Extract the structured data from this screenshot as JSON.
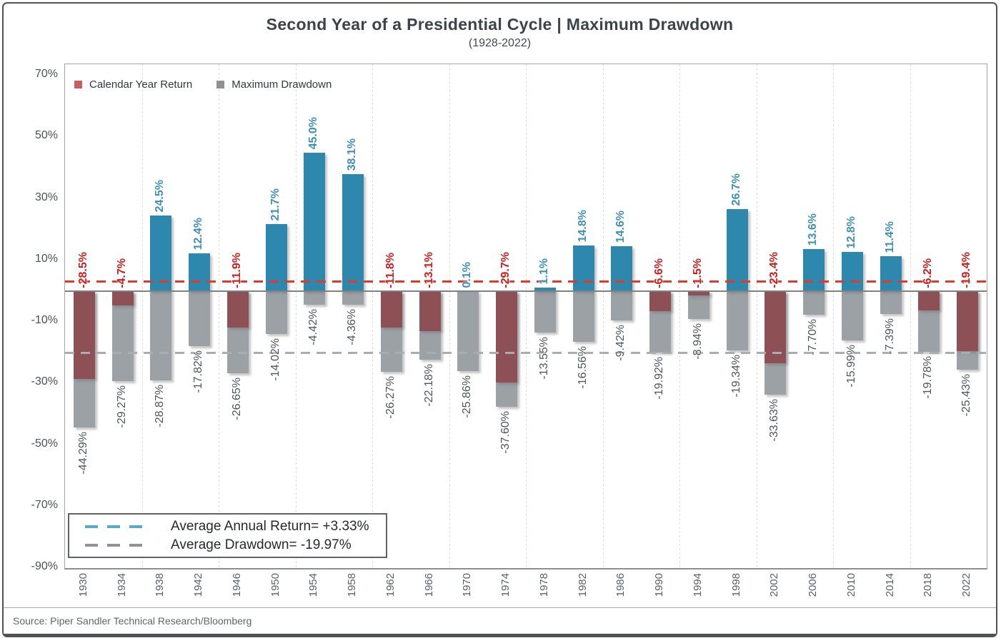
{
  "title": "Second Year of a Presidential Cycle | Maximum Drawdown",
  "subtitle": "(1928-2022)",
  "source": "Source: Piper Sandler Technical Research/Bloomberg",
  "legend": {
    "return_label": "Calendar Year Return",
    "drawdown_label": "Maximum Drawdown"
  },
  "avg_box": {
    "return_line": "Average Annual Return= +3.33%",
    "drawdown_line": "Average Drawdown= -19.97%"
  },
  "colors": {
    "return_positive_bar": "#2e87ac",
    "return_negative_bar": "#8c5055",
    "drawdown_bar": "#9ba1a5",
    "return_positive_label": "#3f90b5",
    "return_negative_label": "#c9201d",
    "drawdown_label": "#515659",
    "avg_return_line_chart": "#e03a2b",
    "avg_drawdown_line_chart": "#a8adb1",
    "avg_return_line_legend": "#57a8ce",
    "avg_drawdown_line_legend": "#8e9397"
  },
  "chart_data": {
    "type": "bar",
    "title": "Second Year of a Presidential Cycle | Maximum Drawdown",
    "subtitle": "(1928-2022)",
    "categories": [
      "1930",
      "1934",
      "1938",
      "1942",
      "1946",
      "1950",
      "1954",
      "1958",
      "1962",
      "1966",
      "1970",
      "1974",
      "1978",
      "1982",
      "1986",
      "1990",
      "1994",
      "1998",
      "2002",
      "2006",
      "2010",
      "2014",
      "2018",
      "2022"
    ],
    "series": [
      {
        "name": "Calendar Year Return",
        "values": [
          -28.5,
          -4.7,
          24.5,
          12.4,
          -11.9,
          21.7,
          45.0,
          38.1,
          -11.8,
          -13.1,
          0.1,
          -29.7,
          1.1,
          14.8,
          14.6,
          -6.6,
          -1.5,
          26.7,
          -23.4,
          13.6,
          12.8,
          11.4,
          -6.2,
          -19.4
        ],
        "labels": [
          "-28.5%",
          "-4.7%",
          "24.5%",
          "12.4%",
          "-11.9%",
          "21.7%",
          "45.0%",
          "38.1%",
          "-11.8%",
          "-13.1%",
          "0.1%",
          "-29.7%",
          "1.1%",
          "14.8%",
          "14.6%",
          "-6.6%",
          "-1.5%",
          "26.7%",
          "-23.4%",
          "13.6%",
          "12.8%",
          "11.4%",
          "-6.2%",
          "-19.4%"
        ]
      },
      {
        "name": "Maximum Drawdown",
        "values": [
          -44.29,
          -29.27,
          -28.87,
          -17.82,
          -26.65,
          -14.02,
          -4.42,
          -4.36,
          -26.27,
          -22.18,
          -25.86,
          -37.6,
          -13.55,
          -16.56,
          -9.42,
          -19.92,
          -8.94,
          -19.34,
          -33.63,
          -7.7,
          -15.99,
          -7.39,
          -19.78,
          -25.43
        ],
        "labels": [
          "-44.29%",
          "-29.27%",
          "-28.87%",
          "-17.82%",
          "-26.65%",
          "-14.02%",
          "-4.42%",
          "-4.36%",
          "-26.27%",
          "-22.18%",
          "-25.86%",
          "-37.60%",
          "-13.55%",
          "-16.56%",
          "-9.42%",
          "-19.92%",
          "-8.94%",
          "-19.34%",
          "-33.63%",
          "-7.70%",
          "-15.99%",
          "-7.39%",
          "-19.78%",
          "-25.43%"
        ],
        "label_decimals": 2
      }
    ],
    "y_ticks": [
      70,
      50,
      30,
      10,
      -10,
      -30,
      -50,
      -70,
      -90
    ],
    "y_tick_labels": [
      "70%",
      "50%",
      "30%",
      "10%",
      "-10%",
      "-30%",
      "-50%",
      "-70%",
      "-90%"
    ],
    "ylim": [
      -90,
      73.7
    ],
    "avg_return": 3.33,
    "avg_drawdown": -19.97,
    "grid": "vertical-dotted-every-2-years",
    "legend_position": "top-left"
  }
}
